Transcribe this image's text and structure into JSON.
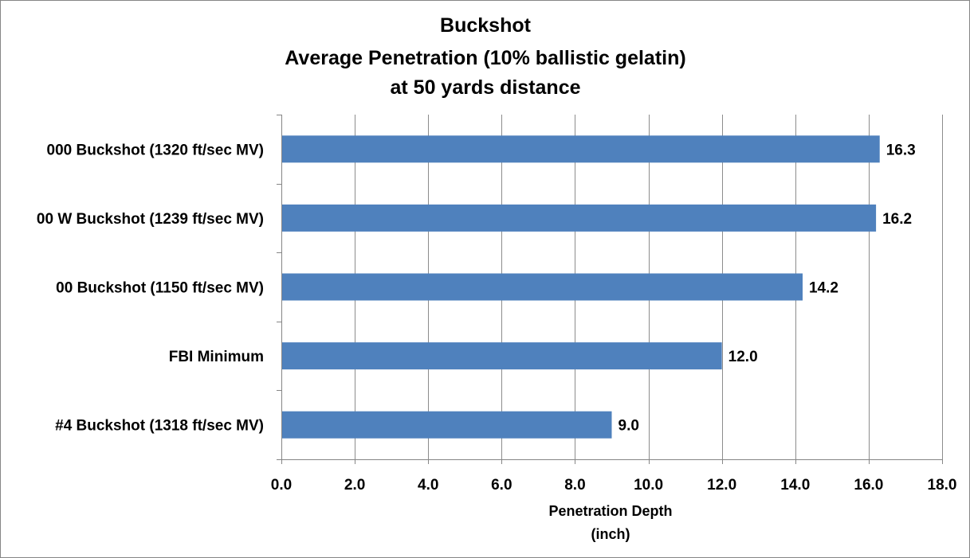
{
  "chart_data": {
    "type": "bar",
    "orientation": "horizontal",
    "title_lines": [
      "Buckshot",
      "Average Penetration (10% ballistic gelatin)",
      "at 50 yards distance"
    ],
    "categories": [
      "000 Buckshot (1320 ft/sec MV)",
      "00 W Buckshot (1239 ft/sec MV)",
      "00 Buckshot (1150 ft/sec MV)",
      "FBI Minimum",
      "#4 Buckshot (1318 ft/sec MV)"
    ],
    "values": [
      16.3,
      16.2,
      14.2,
      12.0,
      9.0
    ],
    "value_labels": [
      "16.3",
      "16.2",
      "14.2",
      "12.0",
      "9.0"
    ],
    "xticks": [
      0,
      2,
      4,
      6,
      8,
      10,
      12,
      14,
      16,
      18
    ],
    "xtick_labels": [
      "0.0",
      "2.0",
      "4.0",
      "6.0",
      "8.0",
      "10.0",
      "12.0",
      "14.0",
      "16.0",
      "18.0"
    ],
    "xlim": [
      0,
      18
    ],
    "xlabel_lines": [
      "Penetration Depth",
      "(inch)"
    ],
    "ylabel": "",
    "grid": true,
    "legend": "none",
    "bar_color": "#4f81bd",
    "grid_color": "#8c8c8c",
    "axis_color": "#868686"
  }
}
